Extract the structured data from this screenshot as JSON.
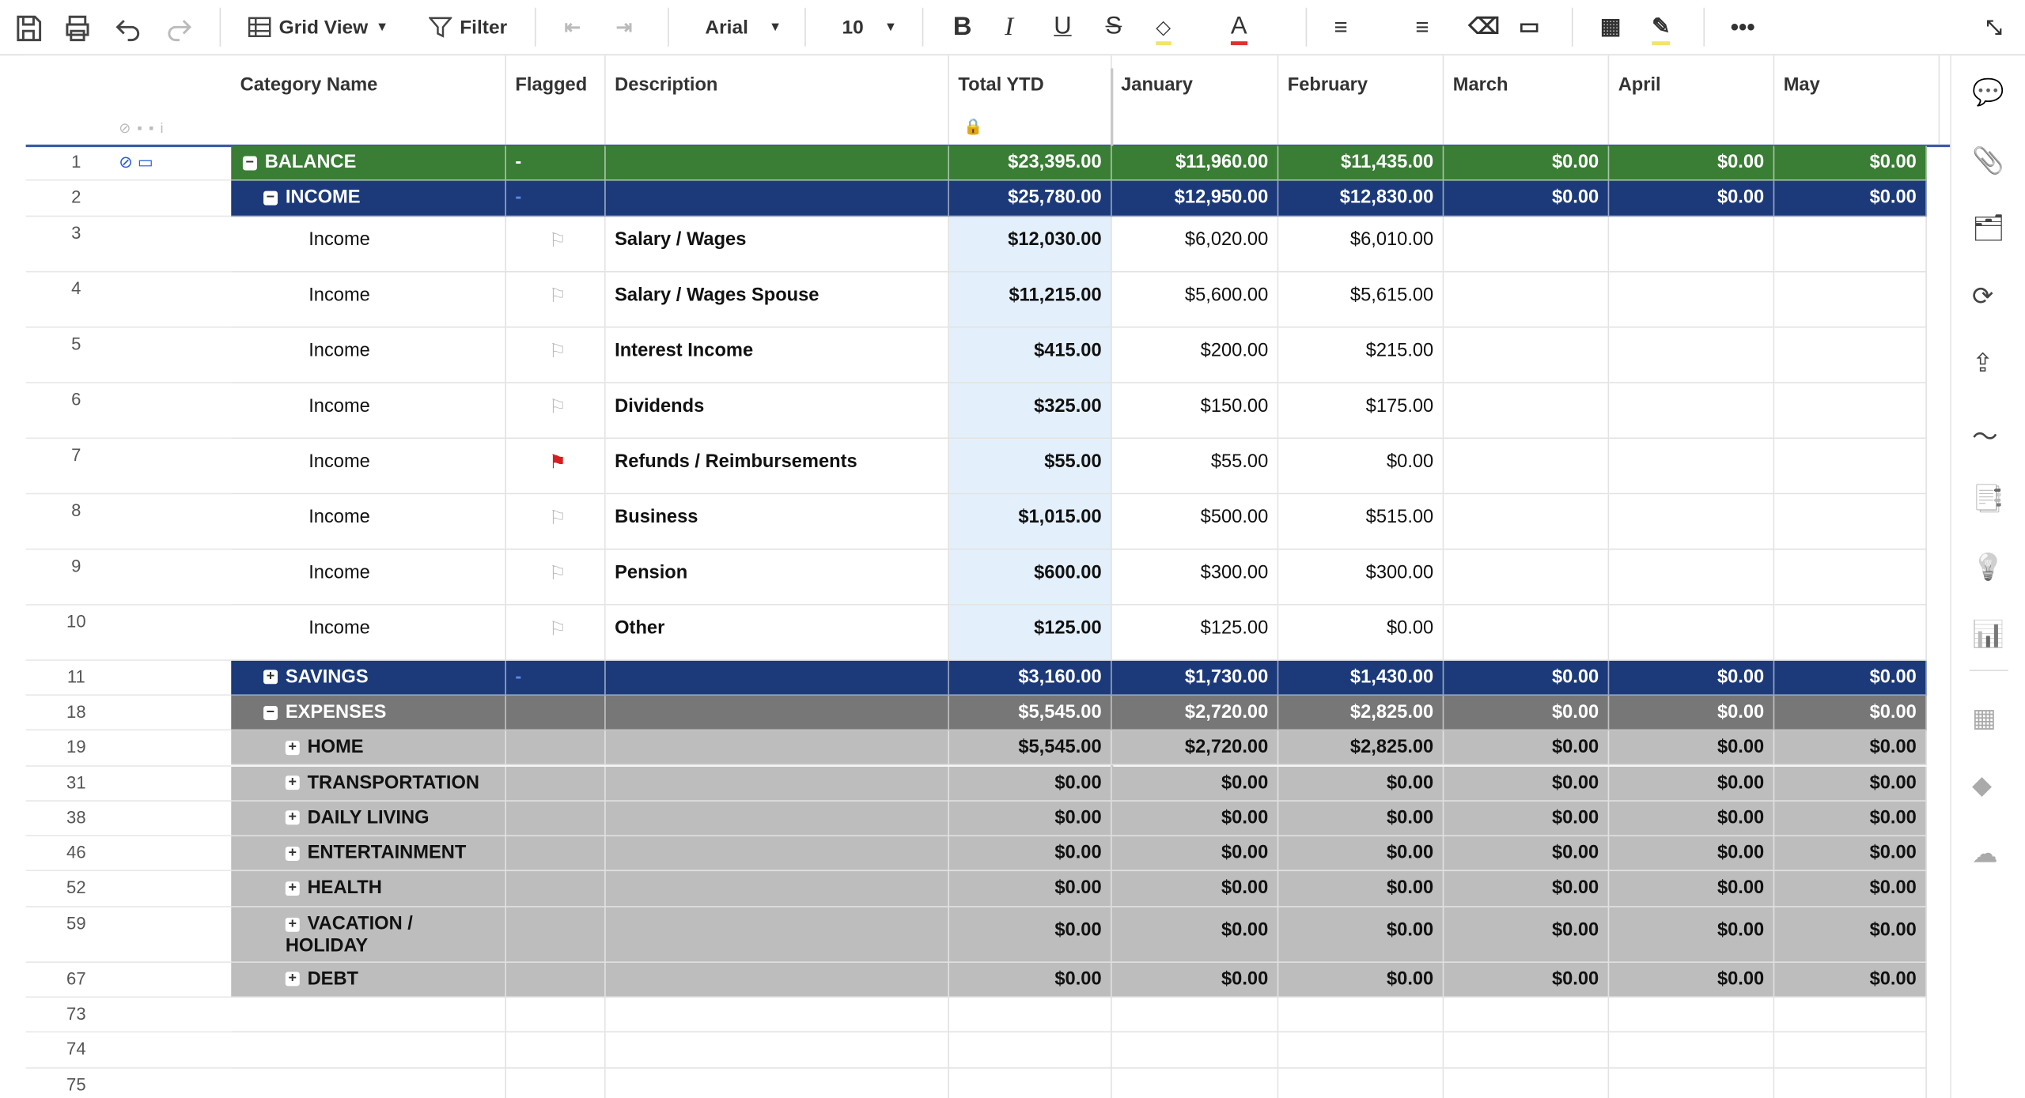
{
  "toolbar": {
    "view": "Grid View",
    "filter": "Filter",
    "font": "Arial",
    "size": "10"
  },
  "columns": [
    "Category Name",
    "Flagged",
    "Description",
    "Total YTD",
    "January",
    "February",
    "March",
    "April",
    "May"
  ],
  "rows": [
    {
      "num": "1",
      "category": "BALANCE",
      "style": "balance",
      "level": 0,
      "expanded": true,
      "flag": "-",
      "values": [
        "$23,395.00",
        "$11,960.00",
        "$11,435.00",
        "$0.00",
        "$0.00",
        "$0.00"
      ]
    },
    {
      "num": "2",
      "category": "INCOME",
      "style": "group",
      "level": 1,
      "expanded": true,
      "flag": "-",
      "values": [
        "$25,780.00",
        "$12,950.00",
        "$12,830.00",
        "$0.00",
        "$0.00",
        "$0.00"
      ]
    },
    {
      "num": "3",
      "category": "Income",
      "style": "item",
      "level": 2,
      "description": "Salary / Wages",
      "values": [
        "$12,030.00",
        "$6,020.00",
        "$6,010.00"
      ]
    },
    {
      "num": "4",
      "category": "Income",
      "style": "item",
      "level": 2,
      "description": "Salary / Wages Spouse",
      "values": [
        "$11,215.00",
        "$5,600.00",
        "$5,615.00"
      ]
    },
    {
      "num": "5",
      "category": "Income",
      "style": "item",
      "level": 2,
      "description": "Interest Income",
      "values": [
        "$415.00",
        "$200.00",
        "$215.00"
      ]
    },
    {
      "num": "6",
      "category": "Income",
      "style": "item",
      "level": 2,
      "description": "Dividends",
      "values": [
        "$325.00",
        "$150.00",
        "$175.00"
      ]
    },
    {
      "num": "7",
      "category": "Income",
      "style": "item",
      "level": 2,
      "flagged": true,
      "description": "Refunds / Reimbursements",
      "values": [
        "$55.00",
        "$55.00",
        "$0.00"
      ]
    },
    {
      "num": "8",
      "category": "Income",
      "style": "item",
      "level": 2,
      "description": "Business",
      "values": [
        "$1,015.00",
        "$500.00",
        "$515.00"
      ]
    },
    {
      "num": "9",
      "category": "Income",
      "style": "item",
      "level": 2,
      "description": "Pension",
      "values": [
        "$600.00",
        "$300.00",
        "$300.00"
      ]
    },
    {
      "num": "10",
      "category": "Income",
      "style": "item",
      "level": 2,
      "description": "Other",
      "values": [
        "$125.00",
        "$125.00",
        "$0.00"
      ]
    },
    {
      "num": "11",
      "category": "SAVINGS",
      "style": "group",
      "level": 1,
      "expanded": false,
      "flag": "-",
      "values": [
        "$3,160.00",
        "$1,730.00",
        "$1,430.00",
        "$0.00",
        "$0.00",
        "$0.00"
      ]
    },
    {
      "num": "18",
      "category": "EXPENSES",
      "style": "expense",
      "level": 1,
      "expanded": true,
      "values": [
        "$5,545.00",
        "$2,720.00",
        "$2,825.00",
        "$0.00",
        "$0.00",
        "$0.00"
      ]
    },
    {
      "num": "19",
      "category": "HOME",
      "style": "sub",
      "level": 2,
      "expanded": false,
      "values": [
        "$5,545.00",
        "$2,720.00",
        "$2,825.00",
        "$0.00",
        "$0.00",
        "$0.00"
      ]
    },
    {
      "num": "31",
      "category": "TRANSPORTATION",
      "style": "sub",
      "level": 2,
      "expanded": false,
      "values": [
        "$0.00",
        "$0.00",
        "$0.00",
        "$0.00",
        "$0.00",
        "$0.00"
      ]
    },
    {
      "num": "38",
      "category": "DAILY LIVING",
      "style": "sub",
      "level": 2,
      "expanded": false,
      "values": [
        "$0.00",
        "$0.00",
        "$0.00",
        "$0.00",
        "$0.00",
        "$0.00"
      ]
    },
    {
      "num": "46",
      "category": "ENTERTAINMENT",
      "style": "sub",
      "level": 2,
      "expanded": false,
      "values": [
        "$0.00",
        "$0.00",
        "$0.00",
        "$0.00",
        "$0.00",
        "$0.00"
      ]
    },
    {
      "num": "52",
      "category": "HEALTH",
      "style": "sub",
      "level": 2,
      "expanded": false,
      "values": [
        "$0.00",
        "$0.00",
        "$0.00",
        "$0.00",
        "$0.00",
        "$0.00"
      ]
    },
    {
      "num": "59",
      "category": "VACATION / HOLIDAY",
      "style": "sub",
      "level": 2,
      "expanded": false,
      "tall": true,
      "values": [
        "$0.00",
        "$0.00",
        "$0.00",
        "$0.00",
        "$0.00",
        "$0.00"
      ]
    },
    {
      "num": "67",
      "category": "DEBT",
      "style": "sub",
      "level": 2,
      "expanded": false,
      "values": [
        "$0.00",
        "$0.00",
        "$0.00",
        "$0.00",
        "$0.00",
        "$0.00"
      ]
    },
    {
      "num": "73",
      "style": "empty"
    },
    {
      "num": "74",
      "style": "empty"
    },
    {
      "num": "75",
      "style": "empty"
    }
  ]
}
